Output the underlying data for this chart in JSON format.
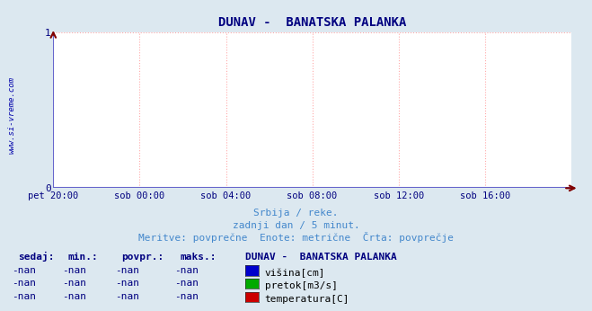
{
  "title": "DUNAV -  BANATSKA PALANKA",
  "title_color": "#000080",
  "title_fontsize": 10,
  "bg_color": "#dce8f0",
  "plot_bg_color": "#ffffff",
  "grid_color": "#ffaaaa",
  "axis_color": "#6666cc",
  "arrow_color": "#800000",
  "ylim": [
    0,
    1
  ],
  "yticks": [
    0,
    1
  ],
  "tick_color": "#000080",
  "xtick_labels": [
    "pet 20:00",
    "sob 00:00",
    "sob 04:00",
    "sob 08:00",
    "sob 12:00",
    "sob 16:00"
  ],
  "watermark": "www.si-vreme.com",
  "watermark_color": "#0000aa",
  "sub_text1": "Srbija / reke.",
  "sub_text2": "zadnji dan / 5 minut.",
  "sub_text3": "Meritve: povprečne  Enote: metrične  Črta: povprečje",
  "sub_text_color": "#4488cc",
  "table_header": [
    "sedaj:",
    "min.:",
    "povpr.:",
    "maks.:"
  ],
  "table_data": [
    [
      "-nan",
      "-nan",
      "-nan",
      "-nan"
    ],
    [
      "-nan",
      "-nan",
      "-nan",
      "-nan"
    ],
    [
      "-nan",
      "-nan",
      "-nan",
      "-nan"
    ]
  ],
  "legend_title": "DUNAV -  BANATSKA PALANKA",
  "legend_items": [
    {
      "label": "višina[cm]",
      "color": "#0000cc"
    },
    {
      "label": "pretok[m3/s]",
      "color": "#00aa00"
    },
    {
      "label": "temperatura[C]",
      "color": "#cc0000"
    }
  ],
  "table_header_color": "#000080",
  "table_data_color": "#000080"
}
